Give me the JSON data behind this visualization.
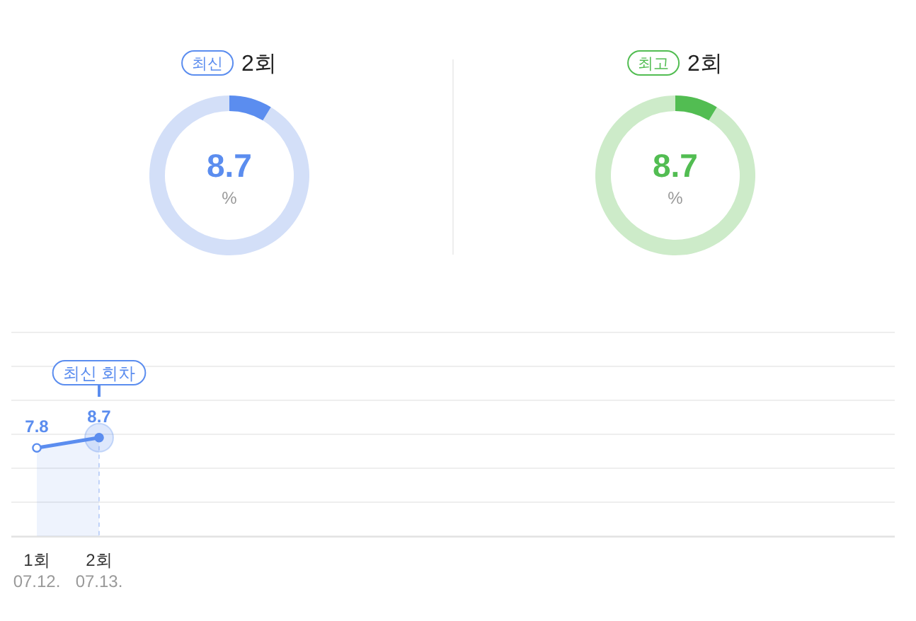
{
  "chart_data": [
    {
      "type": "donut",
      "title": "2회",
      "annotations": [
        "최신",
        "%"
      ],
      "categories": [
        null,
        null
      ],
      "values": [
        8.7,
        91.3
      ],
      "colors": [
        "#5b8def",
        "#d3dff8"
      ],
      "value_labels": [
        "8.7",
        null
      ]
    },
    {
      "type": "donut",
      "title": "2회",
      "annotations": [
        "최고",
        "%"
      ],
      "categories": [
        null,
        null
      ],
      "values": [
        8.7,
        91.3
      ],
      "colors": [
        "#52bd52",
        "#cdebc9"
      ],
      "value_labels": [
        "8.7",
        null
      ]
    },
    {
      "type": "area",
      "categories": [
        "1회\n07.12.",
        "2회\n07.13.",
        null,
        null,
        null,
        null,
        null,
        null,
        null,
        null,
        null,
        null,
        null,
        null
      ],
      "series": [
        {
          "color": "#5b8def",
          "values": [
            7.8,
            8.7,
            null,
            null,
            null,
            null,
            null,
            null,
            null,
            null,
            null,
            null,
            null,
            null
          ]
        }
      ],
      "data_labels": true,
      "marker": "circle",
      "grid": "y",
      "ylim": [
        0,
        18
      ],
      "yticks": [
        {
          "value": 0,
          "label": null
        },
        {
          "value": 3,
          "label": null
        },
        {
          "value": 6,
          "label": null
        },
        {
          "value": 9,
          "label": null
        },
        {
          "value": 12,
          "label": null
        },
        {
          "value": 15,
          "label": null
        },
        {
          "value": 18,
          "label": null
        }
      ],
      "annotations": [
        "최신 회차"
      ]
    }
  ]
}
